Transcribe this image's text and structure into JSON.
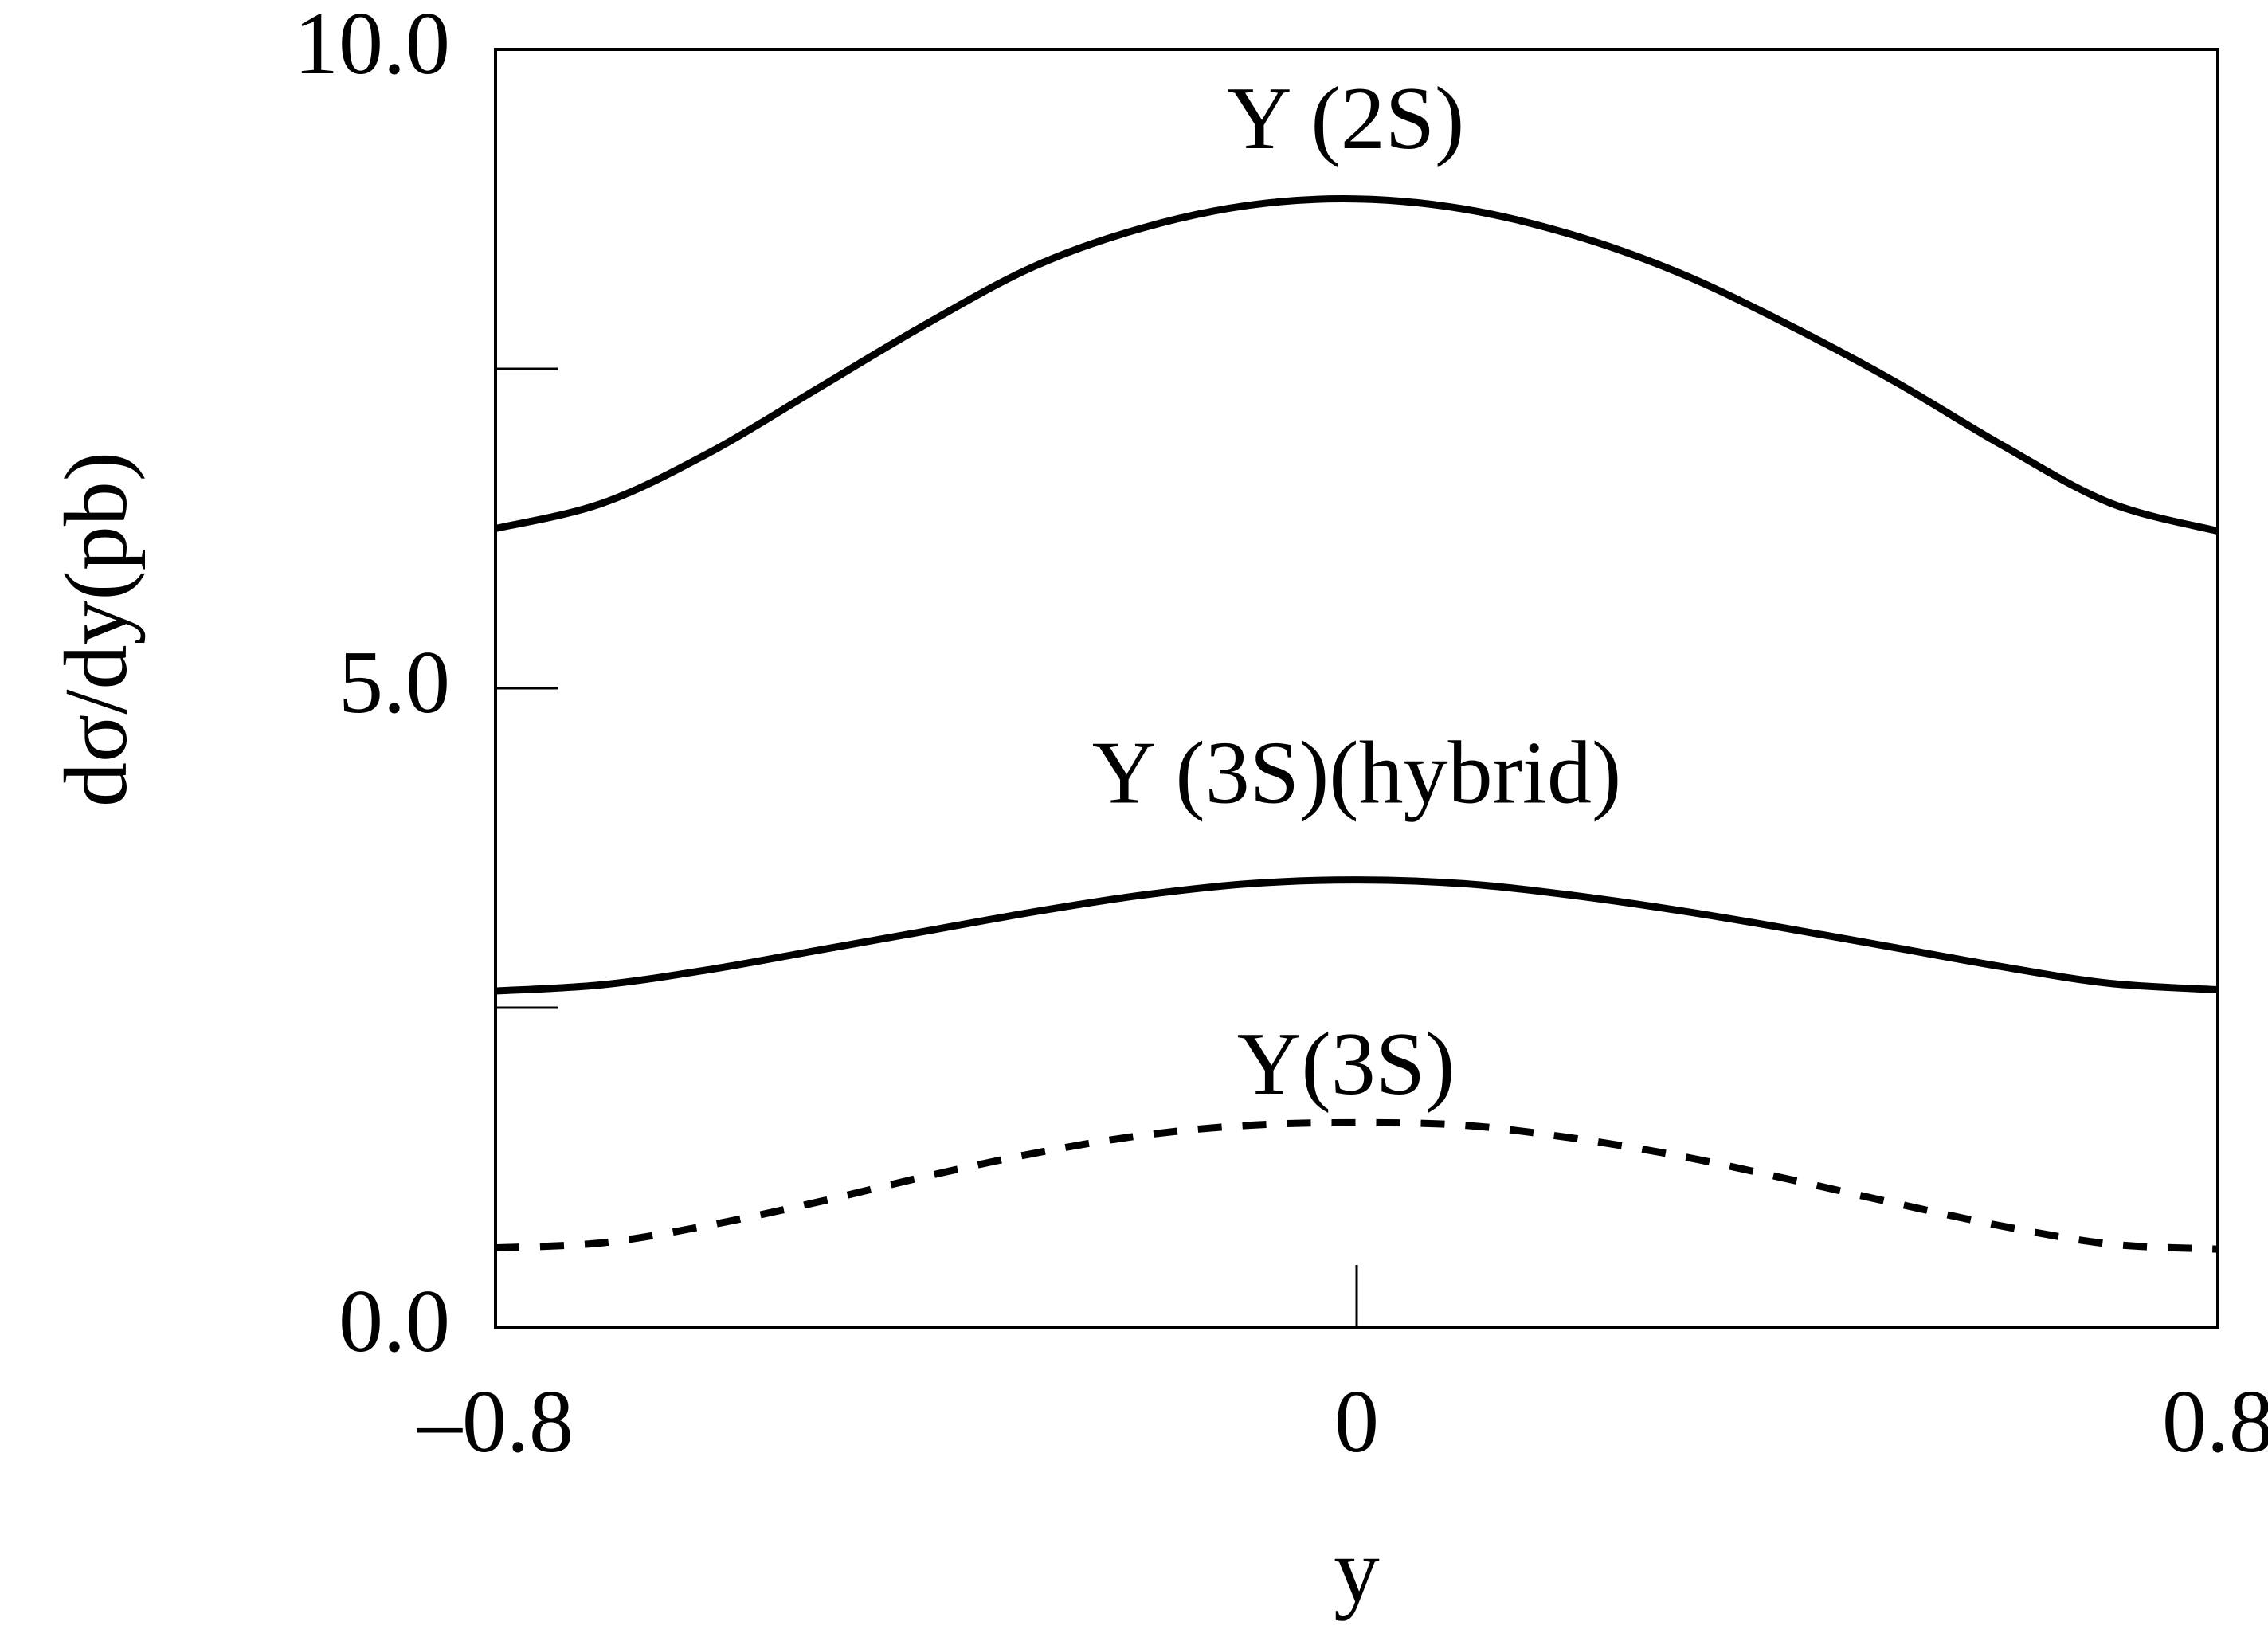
{
  "chart_data": {
    "type": "line",
    "xlabel": "y",
    "ylabel": "dσ/dy(pb)",
    "xlim": [
      -0.8,
      0.8
    ],
    "ylim": [
      0.0,
      10.0
    ],
    "x_ticks": [
      -0.8,
      0,
      0.8
    ],
    "x_tick_labels": [
      "–0.8",
      "0",
      "0.8"
    ],
    "y_ticks": [
      0.0,
      5.0,
      10.0
    ],
    "y_tick_labels": [
      "0.0",
      "5.0",
      "10.0"
    ],
    "y_minor_ticks": [
      2.5,
      7.5
    ],
    "grid": false,
    "legend": "none",
    "series": [
      {
        "name": "Y (2S)",
        "style": "solid",
        "color": "#000000",
        "label_at": [
          -0.01,
          9.45
        ],
        "x": [
          -0.8,
          -0.7,
          -0.6,
          -0.5,
          -0.4,
          -0.3,
          -0.2,
          -0.1,
          0,
          0.1,
          0.2,
          0.3,
          0.4,
          0.5,
          0.6,
          0.7,
          0.8
        ],
        "y": [
          6.25,
          6.45,
          6.85,
          7.35,
          7.85,
          8.3,
          8.6,
          8.78,
          8.83,
          8.75,
          8.55,
          8.25,
          7.85,
          7.4,
          6.9,
          6.45,
          6.23
        ]
      },
      {
        "name": "Y (3S)(hybrid)",
        "style": "solid",
        "color": "#000000",
        "label_at": [
          0.0,
          4.33
        ],
        "x": [
          -0.8,
          -0.7,
          -0.6,
          -0.5,
          -0.4,
          -0.3,
          -0.2,
          -0.1,
          0,
          0.1,
          0.2,
          0.3,
          0.4,
          0.5,
          0.6,
          0.7,
          0.8
        ],
        "y": [
          2.63,
          2.68,
          2.8,
          2.95,
          3.1,
          3.25,
          3.38,
          3.47,
          3.5,
          3.47,
          3.38,
          3.26,
          3.12,
          2.97,
          2.82,
          2.69,
          2.64
        ]
      },
      {
        "name": "Y(3S)",
        "style": "dashed",
        "color": "#000000",
        "label_at": [
          -0.01,
          2.05
        ],
        "x": [
          -0.8,
          -0.7,
          -0.6,
          -0.5,
          -0.4,
          -0.3,
          -0.2,
          -0.1,
          0,
          0.1,
          0.2,
          0.3,
          0.4,
          0.5,
          0.6,
          0.7,
          0.8
        ],
        "y": [
          0.62,
          0.66,
          0.8,
          0.98,
          1.18,
          1.36,
          1.5,
          1.58,
          1.6,
          1.58,
          1.48,
          1.34,
          1.16,
          0.97,
          0.79,
          0.65,
          0.61
        ]
      }
    ]
  }
}
